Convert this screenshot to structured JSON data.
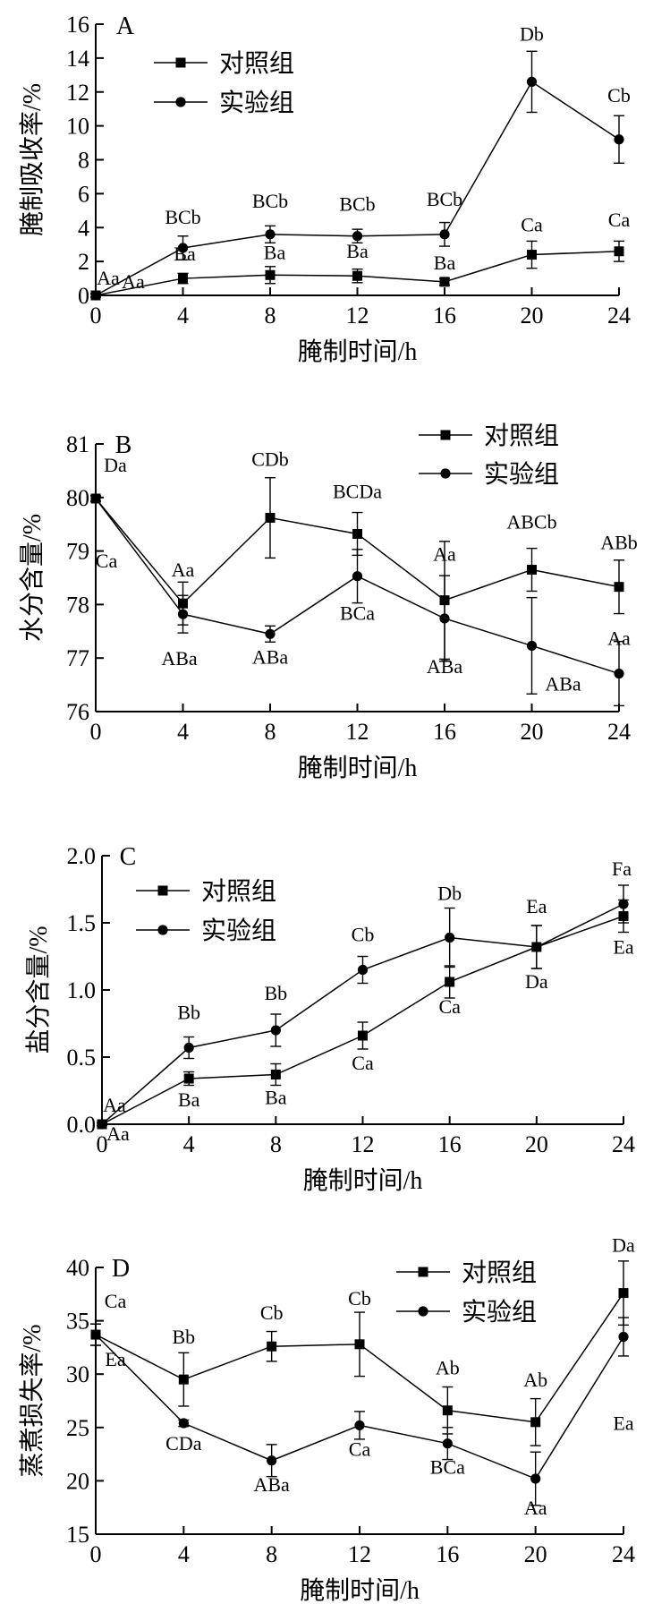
{
  "chart_data": [
    {
      "type": "line",
      "panel_letter": "A",
      "ylabel": "腌制吸收率/%",
      "xlabel": "腌制时间/h",
      "xlim": [
        0,
        24
      ],
      "ylim": [
        0,
        16
      ],
      "x_ticks": [
        0,
        4,
        8,
        12,
        16,
        20,
        24
      ],
      "y_ticks": [
        0,
        2,
        4,
        6,
        8,
        10,
        12,
        14,
        16
      ],
      "y_tick_labels": [
        "0",
        "2",
        "4",
        "6",
        "8",
        "10",
        "12",
        "14",
        "16"
      ],
      "legend_position": "top-left",
      "x": [
        0,
        4,
        8,
        12,
        16,
        20,
        24
      ],
      "series": [
        {
          "name": "对照组",
          "marker": "square",
          "values": [
            0.0,
            1.0,
            1.2,
            1.15,
            0.8,
            2.4,
            2.6
          ],
          "errors": [
            0.1,
            0.3,
            0.5,
            0.4,
            0.2,
            0.8,
            0.6
          ],
          "labels": [
            "Aa",
            "Ba",
            "Ba",
            "Ba",
            "Ba",
            "Ca",
            "Ca"
          ]
        },
        {
          "name": "实验组",
          "marker": "circle",
          "values": [
            0.0,
            2.8,
            3.6,
            3.5,
            3.6,
            12.6,
            9.2
          ],
          "errors": [
            0.1,
            0.7,
            0.5,
            0.4,
            0.7,
            1.8,
            1.4
          ],
          "labels": [
            "Aa",
            "BCb",
            "BCb",
            "BCb",
            "BCb",
            "Db",
            "Cb"
          ]
        }
      ]
    },
    {
      "type": "line",
      "panel_letter": "B",
      "ylabel": "水分含量/%",
      "xlabel": "腌制时间/h",
      "xlim": [
        0,
        24
      ],
      "ylim": [
        76,
        81
      ],
      "x_ticks": [
        0,
        4,
        8,
        12,
        16,
        20,
        24
      ],
      "y_ticks": [
        76,
        77,
        78,
        79,
        80,
        81
      ],
      "y_tick_labels": [
        "76",
        "77",
        "78",
        "79",
        "80",
        "81"
      ],
      "legend_position": "top-right",
      "x": [
        0,
        4,
        8,
        12,
        16,
        20,
        24
      ],
      "series": [
        {
          "name": "对照组",
          "marker": "square",
          "values": [
            79.98,
            78.02,
            79.62,
            79.32,
            78.08,
            78.65,
            78.33
          ],
          "errors": [
            0.05,
            0.4,
            0.75,
            0.4,
            1.1,
            0.4,
            0.5
          ],
          "labels": [
            "Da",
            "Aa",
            "CDb",
            "BCDa",
            "Aa",
            "ABCb",
            "ABb"
          ]
        },
        {
          "name": "实验组",
          "marker": "circle",
          "values": [
            79.98,
            77.82,
            77.45,
            78.53,
            77.74,
            77.23,
            76.71
          ],
          "errors": [
            0.05,
            0.35,
            0.15,
            0.5,
            0.8,
            0.9,
            0.6
          ],
          "labels": [
            "Ca",
            "ABa",
            "ABa",
            "BCa",
            "ABa",
            "ABa",
            "Aa"
          ]
        }
      ]
    },
    {
      "type": "line",
      "panel_letter": "C",
      "ylabel": "盐分含量/%",
      "xlabel": "腌制时间/h",
      "xlim": [
        0,
        24
      ],
      "ylim": [
        0,
        2
      ],
      "x_ticks": [
        0,
        4,
        8,
        12,
        16,
        20,
        24
      ],
      "y_ticks": [
        0,
        0.5,
        1.0,
        1.5,
        2.0
      ],
      "y_tick_labels": [
        "0.0",
        "0.5",
        "1.0",
        "1.5",
        "2.0"
      ],
      "legend_position": "top-left",
      "x": [
        0,
        4,
        8,
        12,
        16,
        20,
        24
      ],
      "series": [
        {
          "name": "对照组",
          "marker": "square",
          "values": [
            0.0,
            0.34,
            0.37,
            0.66,
            1.06,
            1.32,
            1.55
          ],
          "errors": [
            0.01,
            0.05,
            0.08,
            0.1,
            0.12,
            0.16,
            0.12
          ],
          "labels": [
            "Aa",
            "Ba",
            "Ba",
            "Ca",
            "Ca",
            "Da",
            "Ea"
          ]
        },
        {
          "name": "实验组",
          "marker": "circle",
          "values": [
            0.0,
            0.57,
            0.7,
            1.15,
            1.39,
            1.32,
            1.64
          ],
          "errors": [
            0.01,
            0.08,
            0.12,
            0.1,
            0.22,
            0.16,
            0.14
          ],
          "labels": [
            "Aa",
            "Bb",
            "Bb",
            "Cb",
            "Db",
            "Ea",
            "Fa"
          ]
        }
      ]
    },
    {
      "type": "line",
      "panel_letter": "D",
      "ylabel": "蒸煮损失率/%",
      "xlabel": "腌制时间/h",
      "xlim": [
        0,
        24
      ],
      "ylim": [
        15,
        40
      ],
      "x_ticks": [
        0,
        4,
        8,
        12,
        16,
        20,
        24
      ],
      "y_ticks": [
        15,
        20,
        25,
        30,
        35,
        40
      ],
      "y_tick_labels": [
        "15",
        "20",
        "25",
        "30",
        "35",
        "40"
      ],
      "legend_position": "top-right",
      "x": [
        0,
        4,
        8,
        12,
        16,
        20,
        24
      ],
      "series": [
        {
          "name": "对照组",
          "marker": "square",
          "values": [
            33.7,
            29.5,
            32.6,
            32.8,
            26.6,
            25.5,
            37.6
          ],
          "errors": [
            1.0,
            2.5,
            1.4,
            3.0,
            2.2,
            2.2,
            3.0
          ],
          "labels": [
            "Ca",
            "Bb",
            "Cb",
            "Cb",
            "Ab",
            "Ab",
            "Da"
          ]
        },
        {
          "name": "实验组",
          "marker": "circle",
          "values": [
            33.7,
            25.4,
            21.9,
            25.2,
            23.5,
            20.2,
            33.5
          ],
          "errors": [
            1.0,
            0.3,
            1.5,
            1.3,
            1.5,
            2.5,
            1.8
          ],
          "labels": [
            "Ea",
            "CDa",
            "ABa",
            "Ca",
            "BCa",
            "Aa",
            "Ea"
          ]
        }
      ]
    }
  ]
}
